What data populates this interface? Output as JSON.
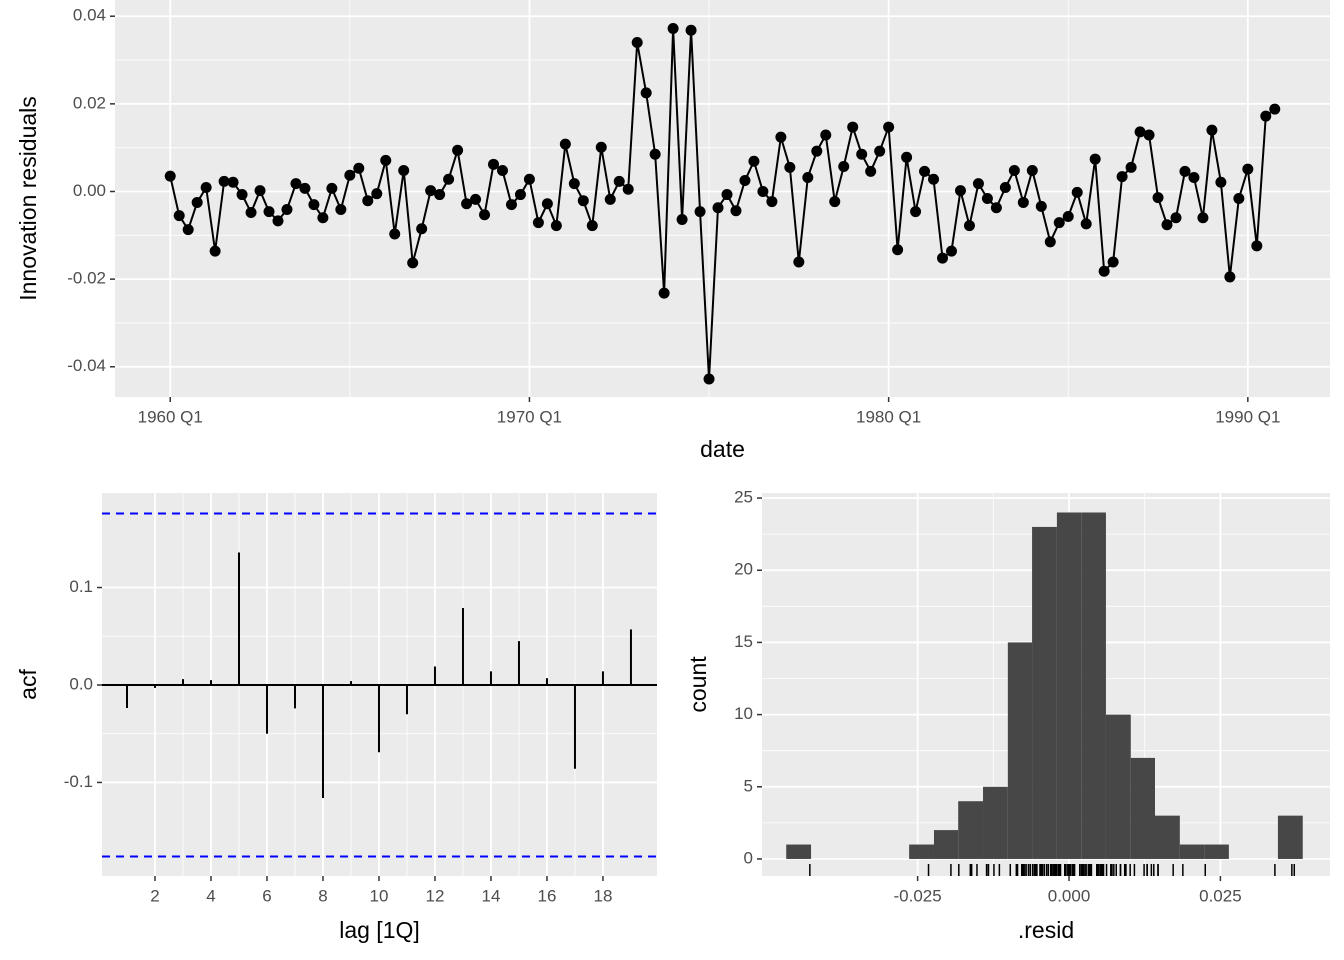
{
  "chart_data": [
    {
      "type": "line",
      "y_label": "Innovation residuals",
      "x_label": "date",
      "color": "#000000",
      "x": [
        "1960 Q1",
        "1960 Q2",
        "1960 Q3",
        "1960 Q4",
        "1961 Q1",
        "1961 Q2",
        "1961 Q3",
        "1961 Q4",
        "1962 Q1",
        "1962 Q2",
        "1962 Q3",
        "1962 Q4",
        "1963 Q1",
        "1963 Q2",
        "1963 Q3",
        "1963 Q4",
        "1964 Q1",
        "1964 Q2",
        "1964 Q3",
        "1964 Q4",
        "1965 Q1",
        "1965 Q2",
        "1965 Q3",
        "1965 Q4",
        "1966 Q1",
        "1966 Q2",
        "1966 Q3",
        "1966 Q4",
        "1967 Q1",
        "1967 Q2",
        "1967 Q3",
        "1967 Q4",
        "1968 Q1",
        "1968 Q2",
        "1968 Q3",
        "1968 Q4",
        "1969 Q1",
        "1969 Q2",
        "1969 Q3",
        "1969 Q4",
        "1970 Q1",
        "1970 Q2",
        "1970 Q3",
        "1970 Q4",
        "1971 Q1",
        "1971 Q2",
        "1971 Q3",
        "1971 Q4",
        "1972 Q1",
        "1972 Q2",
        "1972 Q3",
        "1972 Q4",
        "1973 Q1",
        "1973 Q2",
        "1973 Q3",
        "1973 Q4",
        "1974 Q1",
        "1974 Q2",
        "1974 Q3",
        "1974 Q4",
        "1975 Q1",
        "1975 Q2",
        "1975 Q3",
        "1975 Q4",
        "1976 Q1",
        "1976 Q2",
        "1976 Q3",
        "1976 Q4",
        "1977 Q1",
        "1977 Q2",
        "1977 Q3",
        "1977 Q4",
        "1978 Q1",
        "1978 Q2",
        "1978 Q3",
        "1978 Q4",
        "1979 Q1",
        "1979 Q2",
        "1979 Q3",
        "1979 Q4",
        "1980 Q1",
        "1980 Q2",
        "1980 Q3",
        "1980 Q4",
        "1981 Q1",
        "1981 Q2",
        "1981 Q3",
        "1981 Q4",
        "1982 Q1",
        "1982 Q2",
        "1982 Q3",
        "1982 Q4",
        "1983 Q1",
        "1983 Q2",
        "1983 Q3",
        "1983 Q4",
        "1984 Q1",
        "1984 Q2",
        "1984 Q3",
        "1984 Q4",
        "1985 Q1",
        "1985 Q2",
        "1985 Q3",
        "1985 Q4",
        "1986 Q1",
        "1986 Q2",
        "1986 Q3",
        "1986 Q4",
        "1987 Q1",
        "1987 Q2",
        "1987 Q3",
        "1987 Q4",
        "1988 Q1",
        "1988 Q2",
        "1988 Q3",
        "1988 Q4",
        "1989 Q1",
        "1989 Q2",
        "1989 Q3",
        "1989 Q4",
        "1990 Q1",
        "1990 Q2",
        "1990 Q3",
        "1990 Q4"
      ],
      "values": [
        0.0035,
        -0.0055,
        -0.0087,
        -0.0025,
        0.0009,
        -0.0136,
        0.0023,
        0.0021,
        -0.0007,
        -0.0048,
        0.0002,
        -0.0046,
        -0.0067,
        -0.0041,
        0.0018,
        0.0007,
        -0.003,
        -0.006,
        0.0007,
        -0.0041,
        0.0037,
        0.0053,
        -0.0021,
        -0.0005,
        0.0071,
        -0.0097,
        0.0048,
        -0.0163,
        -0.0085,
        0.0002,
        -0.0007,
        0.0028,
        0.0094,
        -0.0028,
        -0.0018,
        -0.0053,
        0.0062,
        0.0048,
        -0.003,
        -0.0007,
        0.0028,
        -0.0071,
        -0.0028,
        -0.0078,
        0.0108,
        0.0018,
        -0.0021,
        -0.0078,
        0.0101,
        -0.0018,
        0.0023,
        0.0005,
        0.034,
        0.0225,
        0.0085,
        -0.0232,
        0.0372,
        -0.0064,
        0.0368,
        -0.0046,
        -0.0428,
        -0.0037,
        -0.0007,
        -0.0044,
        0.0025,
        0.0069,
        0,
        -0.0023,
        0.0124,
        0.0055,
        -0.0161,
        0.0032,
        0.0092,
        0.0129,
        -0.0023,
        0.0057,
        0.0147,
        0.0085,
        0.0046,
        0.0092,
        0.0147,
        -0.0133,
        0.0078,
        -0.0046,
        0.0046,
        0.0028,
        -0.0152,
        -0.0136,
        0.0002,
        -0.0078,
        0.0018,
        -0.0016,
        -0.0037,
        0.0009,
        0.0048,
        -0.0025,
        0.0048,
        -0.0034,
        -0.0115,
        -0.0071,
        -0.0057,
        -0.0002,
        -0.0074,
        0.0074,
        -0.0182,
        -0.0161,
        0.0034,
        0.0055,
        0.0136,
        0.0129,
        -0.0014,
        -0.0076,
        -0.006,
        0.0046,
        0.0032,
        -0.006,
        0.014,
        0.0021,
        -0.0195,
        -0.0016,
        0.0051,
        -0.0124,
        0.0172,
        0.0188
      ],
      "xticks": [
        "1960 Q1",
        "1970 Q1",
        "1980 Q1",
        "1990 Q1"
      ],
      "ylim": [
        -0.0469,
        0.0437
      ],
      "yticks": [
        -0.04,
        -0.02,
        {
          "value": 0,
          "label": "0.00"
        },
        0.02,
        0.04
      ],
      "grid": true
    },
    {
      "type": "acf",
      "y_label": "acf",
      "x_label": "lag [1Q]",
      "color": "#000000",
      "x": [
        1,
        2,
        3,
        4,
        5,
        6,
        7,
        8,
        9,
        10,
        11,
        12,
        13,
        14,
        15,
        16,
        17,
        18,
        19
      ],
      "values": [
        -0.0236,
        -0.003,
        0.006,
        0.005,
        0.136,
        -0.05,
        -0.024,
        -0.116,
        0.004,
        -0.069,
        -0.03,
        0.019,
        0.079,
        0.014,
        0.045,
        0.007,
        -0.086,
        0.014,
        0.057
      ],
      "ci": [
        -0.176,
        0.176
      ],
      "ci_color": "#0000ff",
      "xlim": [
        0.107,
        19.93
      ],
      "xticks": [
        2,
        4,
        6,
        8,
        10,
        12,
        14,
        16,
        18
      ],
      "ylim": [
        -0.196,
        0.197
      ],
      "yticks": [
        -0.1,
        {
          "value": 0,
          "label": "0.0"
        },
        0.1
      ],
      "grid": true
    },
    {
      "type": "histogram",
      "y_label": "count",
      "x_label": ".resid",
      "color": "#474747",
      "rug": true,
      "bins": [
        -0.0467,
        -0.0426,
        -0.0386,
        -0.0345,
        -0.0304,
        -0.0264,
        -0.0223,
        -0.0183,
        -0.0142,
        -0.0101,
        -0.0061,
        -0.002,
        0.0021,
        0.0061,
        0.0102,
        0.0142,
        0.0183,
        0.0224,
        0.0264,
        0.0305,
        0.0345,
        0.0386
      ],
      "values": [
        1,
        0,
        0,
        0,
        0,
        1,
        2,
        4,
        5,
        15,
        23,
        24,
        24,
        10,
        7,
        3,
        1,
        1,
        0,
        0,
        3
      ],
      "xlim": [
        -0.0507,
        0.0431
      ],
      "xticks": [
        -0.025,
        {
          "value": 0,
          "label": "0.000"
        },
        0.025
      ],
      "ylim": [
        -1.18,
        25.35
      ],
      "yticks": [
        0,
        5,
        10,
        15,
        20,
        25
      ],
      "grid": true
    }
  ]
}
